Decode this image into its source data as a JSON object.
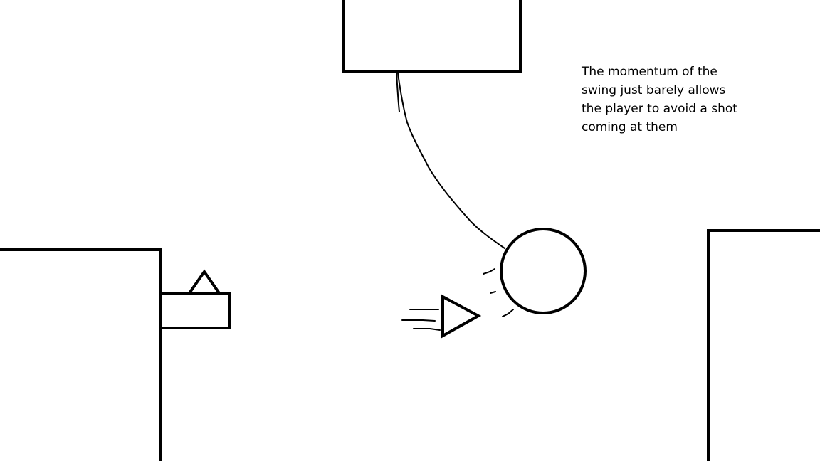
{
  "caption": {
    "lines": [
      "The momentum of the",
      "swing just barely allows",
      "the player to avoid a shot",
      "coming at them"
    ]
  },
  "colors": {
    "background": "#ffffff",
    "ink": "#000000"
  },
  "scene": {
    "elements": [
      "ceiling-anchor-block",
      "grapple-rope",
      "player-ball",
      "swing-motion-marks",
      "bullet-projectile",
      "bullet-speed-lines",
      "left-wall",
      "turret-base",
      "turret-cannon",
      "right-wall"
    ]
  }
}
